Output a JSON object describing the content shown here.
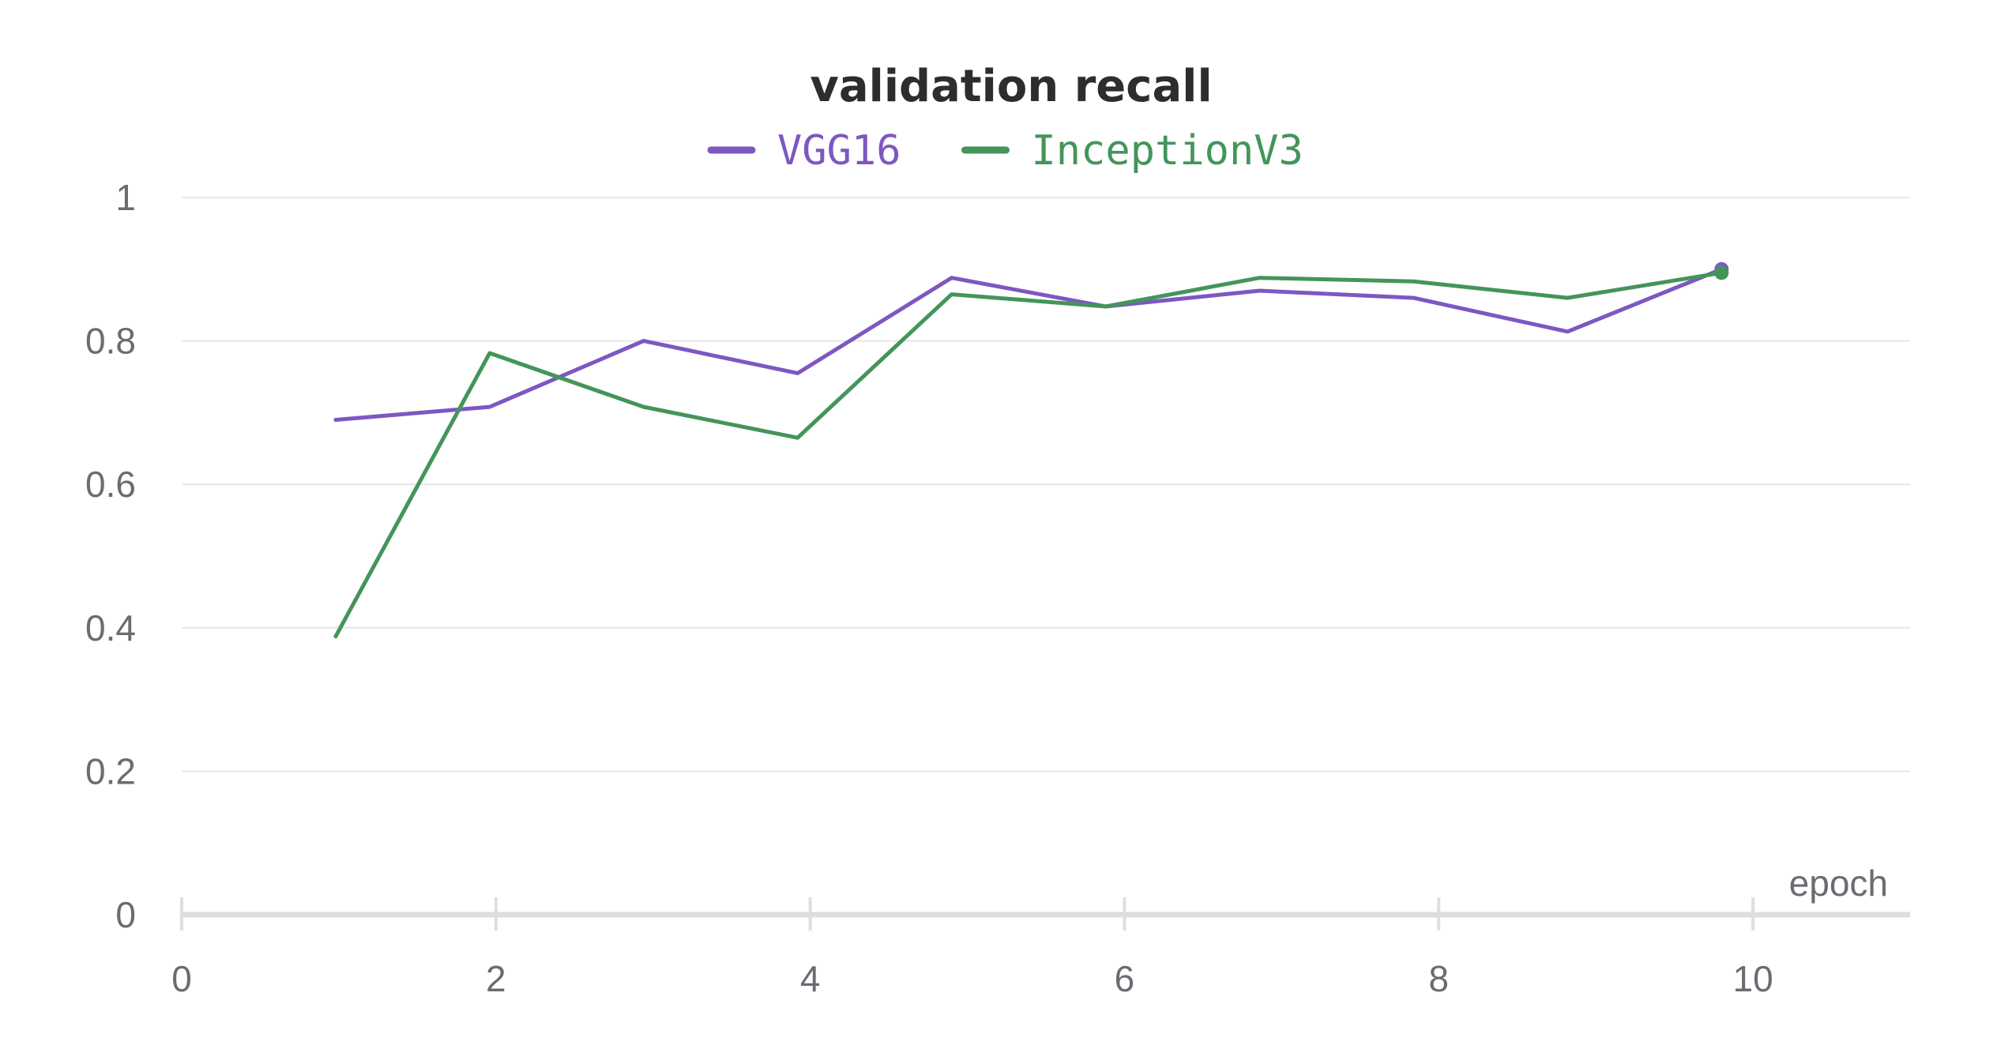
{
  "chart_data": {
    "type": "line",
    "title": "validation recall",
    "xlabel": "epoch",
    "ylabel": "",
    "xlim": [
      0,
      11
    ],
    "ylim": [
      0,
      1
    ],
    "xticks": [
      0,
      2,
      4,
      6,
      8,
      10
    ],
    "yticks": [
      0,
      0.2,
      0.4,
      0.6,
      0.8,
      1
    ],
    "xtick_labels": [
      "0",
      "2",
      "4",
      "6",
      "8",
      "10"
    ],
    "ytick_labels": [
      "0",
      "0.2",
      "0.4",
      "0.6",
      "0.8",
      "1"
    ],
    "grid": "horizontal",
    "legend_placement": "top-center",
    "x": [
      0.98,
      1.96,
      2.94,
      3.92,
      4.9,
      5.88,
      6.86,
      7.84,
      8.82,
      9.8
    ],
    "series": [
      {
        "name": "VGG16",
        "color": "#7e57c2",
        "values": [
          0.69,
          0.708,
          0.8,
          0.755,
          0.888,
          0.848,
          0.87,
          0.86,
          0.813,
          0.9
        ]
      },
      {
        "name": "InceptionV3",
        "color": "#43955a",
        "values": [
          0.388,
          0.783,
          0.708,
          0.665,
          0.865,
          0.848,
          0.888,
          0.883,
          0.86,
          0.895
        ]
      }
    ]
  }
}
